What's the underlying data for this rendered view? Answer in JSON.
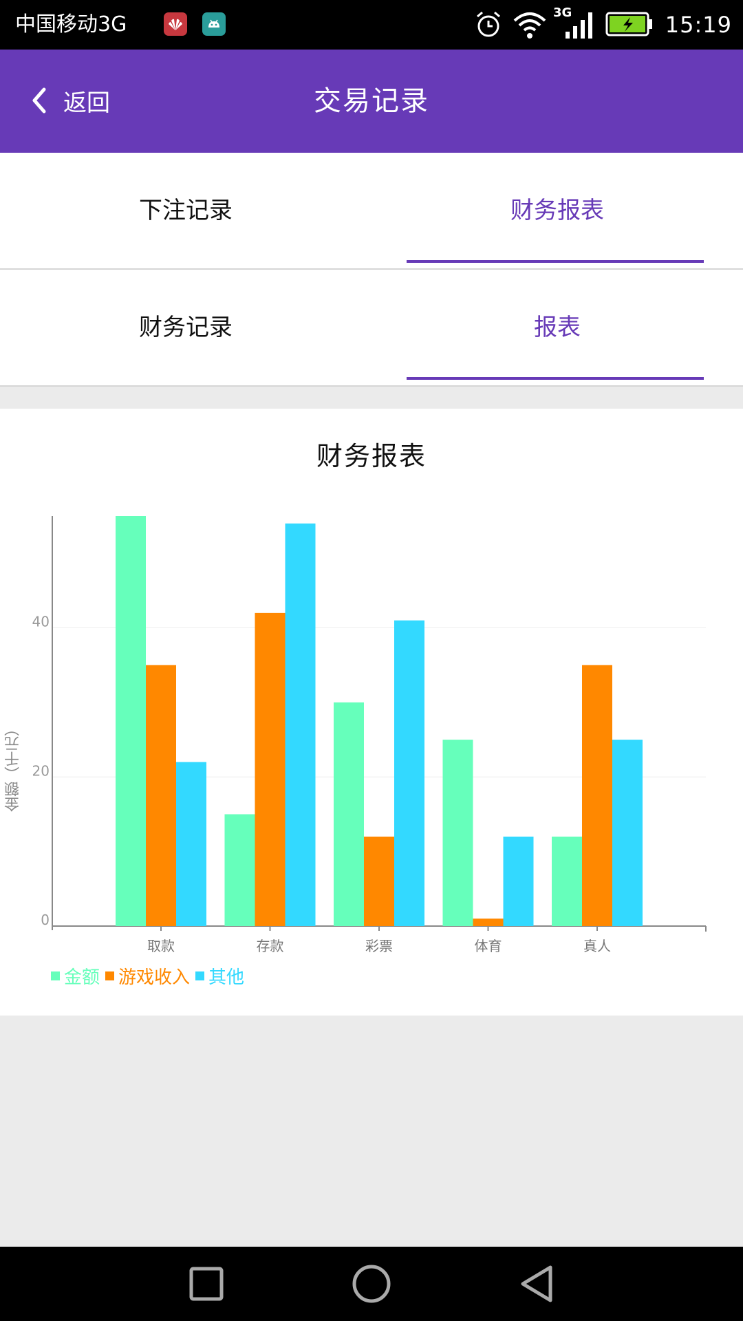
{
  "status_bar": {
    "carrier": "中国移动3G",
    "network_label": "3G",
    "time": "15:19",
    "app_icons": [
      "huawei-icon",
      "android-icon"
    ],
    "indicators": [
      "alarm-icon",
      "wifi-icon",
      "signal-icon",
      "battery-charging-icon"
    ]
  },
  "app_bar": {
    "back_label": "返回",
    "title": "交易记录"
  },
  "tabs_primary": [
    {
      "label": "下注记录",
      "active": false
    },
    {
      "label": "财务报表",
      "active": true
    }
  ],
  "tabs_secondary": [
    {
      "label": "财务记录",
      "active": false
    },
    {
      "label": "报表",
      "active": true
    }
  ],
  "colors": {
    "accent": "#673ab7",
    "series_1": "#66ffbb",
    "series_2": "#ff8800",
    "series_3": "#33d9ff"
  },
  "chart_data": {
    "type": "bar",
    "title": "财务报表",
    "ylabel": "金额（千元）",
    "xlabel": "",
    "categories": [
      "取款",
      "存款",
      "彩票",
      "体育",
      "真人"
    ],
    "ylim": [
      0,
      55
    ],
    "yticks": [
      0,
      20,
      40
    ],
    "grid": true,
    "legend": "bottom-left",
    "series": [
      {
        "name": "金额",
        "color": "#66ffbb",
        "values": [
          55,
          15,
          30,
          25,
          12
        ]
      },
      {
        "name": "游戏收入",
        "color": "#ff8800",
        "values": [
          35,
          42,
          12,
          1,
          35
        ]
      },
      {
        "name": "其他",
        "color": "#33d9ff",
        "values": [
          22,
          54,
          41,
          12,
          25
        ]
      }
    ]
  },
  "nav_bar": {
    "buttons": [
      "recents-square-icon",
      "home-circle-icon",
      "back-triangle-icon"
    ]
  }
}
